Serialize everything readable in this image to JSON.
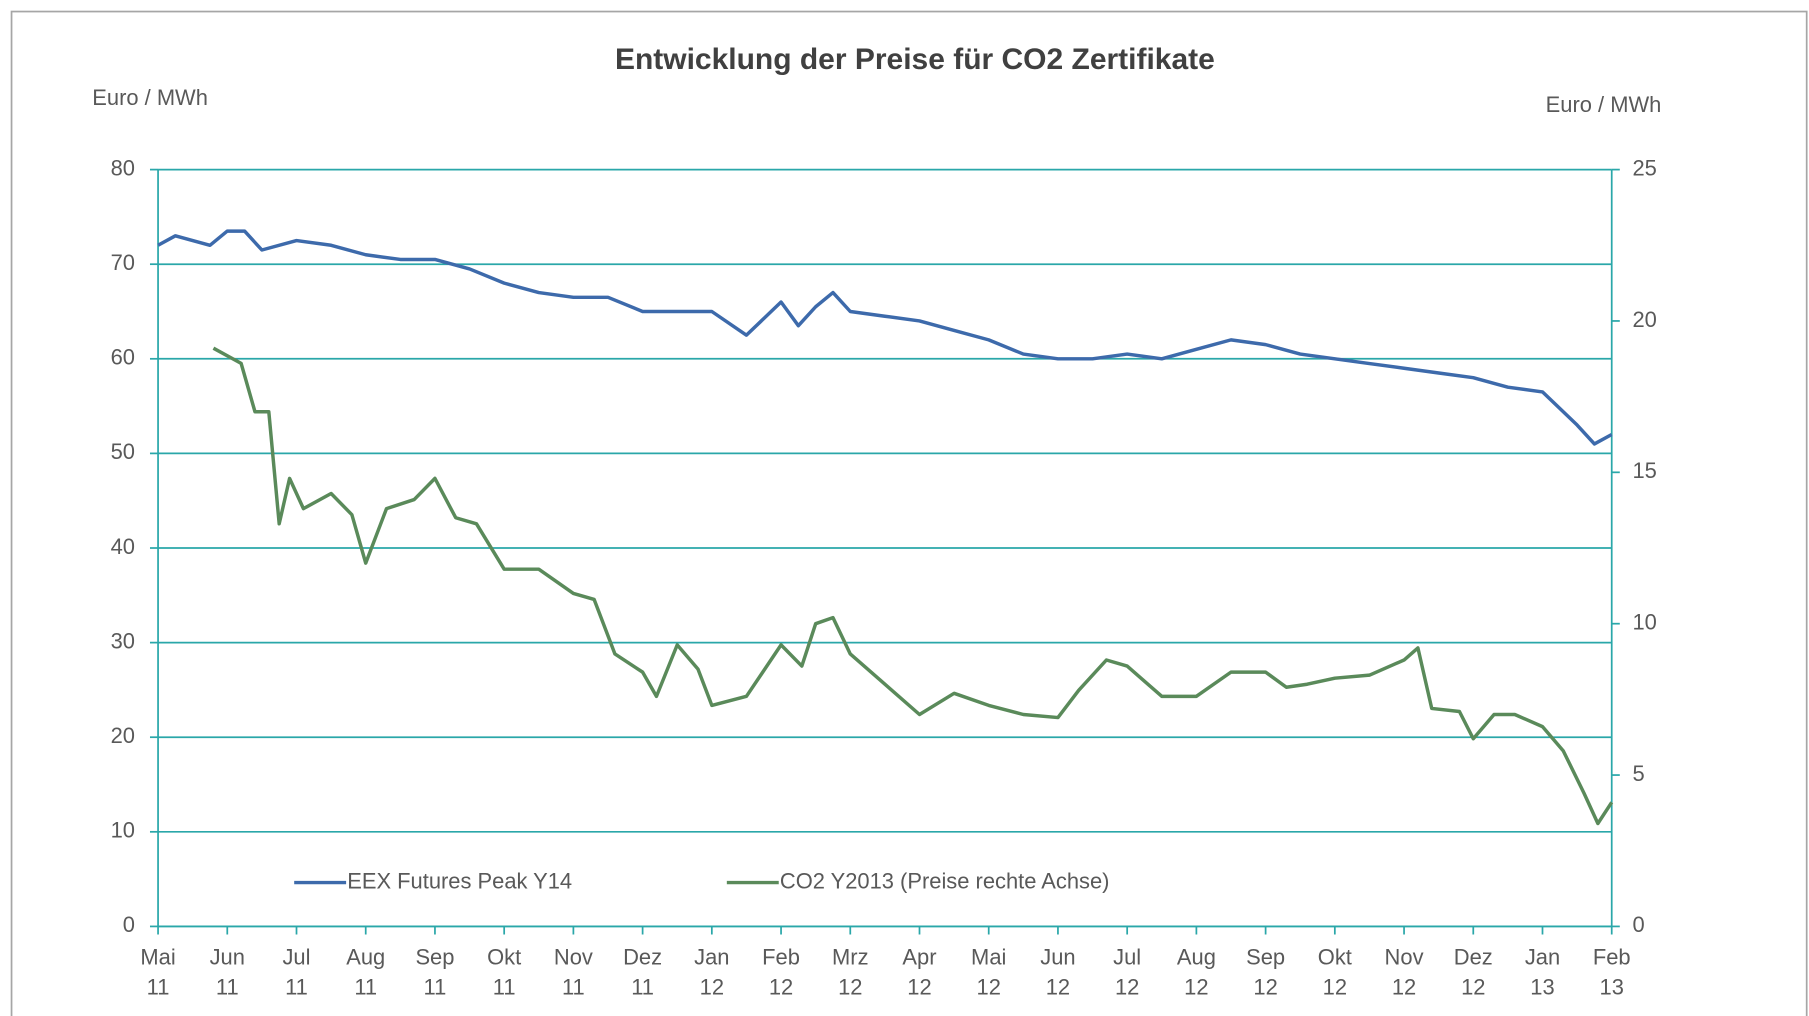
{
  "chart_data": {
    "type": "line",
    "title": "Entwicklung der Preise für CO2 Zertifikate",
    "y_label": "Euro / MWh",
    "y2_label": "Euro / MWh",
    "xlim": [
      0,
      21
    ],
    "xticks": [
      {
        "value": 0,
        "label": "Mai 11"
      },
      {
        "value": 1,
        "label": "Jun 11"
      },
      {
        "value": 2,
        "label": "Jul 11"
      },
      {
        "value": 3,
        "label": "Aug 11"
      },
      {
        "value": 4,
        "label": "Sep 11"
      },
      {
        "value": 5,
        "label": "Okt 11"
      },
      {
        "value": 6,
        "label": "Nov 11"
      },
      {
        "value": 7,
        "label": "Dez 11"
      },
      {
        "value": 8,
        "label": "Jan 12"
      },
      {
        "value": 9,
        "label": "Feb 12"
      },
      {
        "value": 10,
        "label": "Mrz 12"
      },
      {
        "value": 11,
        "label": "Apr 12"
      },
      {
        "value": 12,
        "label": "Mai 12"
      },
      {
        "value": 13,
        "label": "Jun 12"
      },
      {
        "value": 14,
        "label": "Jul 12"
      },
      {
        "value": 15,
        "label": "Aug 12"
      },
      {
        "value": 16,
        "label": "Sep 12"
      },
      {
        "value": 17,
        "label": "Okt 12"
      },
      {
        "value": 18,
        "label": "Nov 12"
      },
      {
        "value": 19,
        "label": "Dez 12"
      },
      {
        "value": 20,
        "label": "Jan 13"
      },
      {
        "value": 21,
        "label": "Feb 13"
      }
    ],
    "ylim": [
      0,
      80
    ],
    "yticks": [
      0,
      10,
      20,
      30,
      40,
      50,
      60,
      70,
      80
    ],
    "y2lim": [
      0,
      25
    ],
    "y2ticks": [
      0,
      5,
      10,
      15,
      20,
      25
    ],
    "grid": true,
    "grid_color": "#2aa7a9",
    "legend": "bottom",
    "series": [
      {
        "name": "EEX Futures Peak Y14",
        "color": "#3d6aab",
        "x": [
          0,
          0.25,
          0.5,
          0.75,
          1,
          1.25,
          1.5,
          2,
          2.5,
          3,
          3.5,
          4,
          4.5,
          5,
          5.5,
          6,
          6.5,
          7,
          7.5,
          8,
          8.5,
          9,
          9.25,
          9.5,
          9.75,
          10,
          10.5,
          11,
          11.5,
          12,
          12.5,
          13,
          13.5,
          14,
          14.5,
          15,
          15.5,
          16,
          16.5,
          17,
          17.5,
          18,
          18.5,
          19,
          19.5,
          20,
          20.5,
          20.75,
          21
        ],
        "values": [
          72,
          73,
          72.5,
          72,
          73.5,
          73.5,
          71.5,
          72.5,
          72,
          71,
          70.5,
          70.5,
          69.5,
          68,
          67,
          66.5,
          66.5,
          65,
          65,
          65,
          62.5,
          66,
          63.5,
          65.5,
          67,
          65,
          64.5,
          64,
          63,
          62,
          60.5,
          60,
          60,
          60.5,
          60,
          61,
          62,
          61.5,
          60.5,
          60,
          59.5,
          59,
          58.5,
          58,
          57,
          56.5,
          53,
          51,
          52
        ]
      },
      {
        "name": "CO2 Y2013 (Preise rechte Achse)",
        "color": "#5a8a5a",
        "axis": "y2",
        "x": [
          0.8,
          1.2,
          1.4,
          1.6,
          1.75,
          1.9,
          2.1,
          2.5,
          2.8,
          3,
          3.3,
          3.7,
          4,
          4.3,
          4.6,
          5,
          5.5,
          6,
          6.3,
          6.6,
          7,
          7.2,
          7.5,
          7.8,
          8,
          8.5,
          9,
          9.3,
          9.5,
          9.75,
          10,
          10.5,
          11,
          11.5,
          12,
          12.5,
          13,
          13.3,
          13.7,
          14,
          14.5,
          15,
          15.5,
          16,
          16.3,
          16.6,
          17,
          17.5,
          18,
          18.2,
          18.4,
          18.8,
          19,
          19.3,
          19.6,
          20,
          20.3,
          20.6,
          20.8,
          21
        ],
        "values": [
          19.1,
          18.6,
          17,
          17,
          13.3,
          14.8,
          13.8,
          14.3,
          13.6,
          12,
          13.8,
          14.1,
          14.8,
          13.5,
          13.3,
          11.8,
          11.8,
          11,
          10.8,
          9,
          8.4,
          7.6,
          9.3,
          8.5,
          7.3,
          7.6,
          9.3,
          8.6,
          10,
          10.2,
          9,
          8,
          7,
          7.7,
          7.3,
          7,
          6.9,
          7.8,
          8.8,
          8.6,
          7.6,
          7.6,
          8.4,
          8.4,
          7.9,
          8,
          8.2,
          8.3,
          8.8,
          9.2,
          7.2,
          7.1,
          6.2,
          7,
          7,
          6.6,
          5.8,
          4.4,
          3.4,
          4.1
        ]
      }
    ]
  }
}
